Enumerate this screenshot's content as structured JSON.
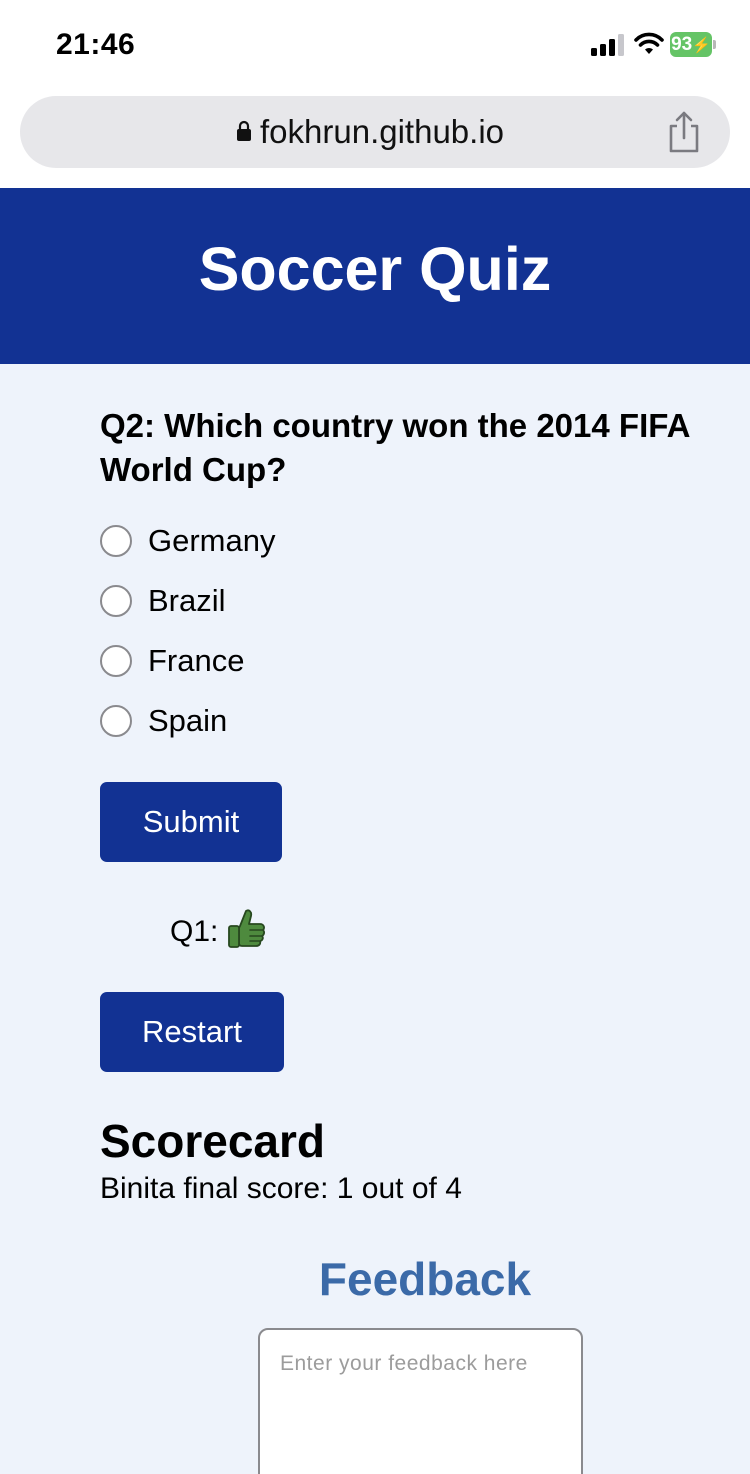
{
  "status_bar": {
    "time": "21:46",
    "battery_level": "93"
  },
  "browser": {
    "url": "fokhrun.github.io",
    "icons": [
      "lock-icon",
      "share-icon",
      "signal-icon",
      "wifi-icon",
      "battery-icon"
    ]
  },
  "header": {
    "title": "Soccer Quiz"
  },
  "quiz": {
    "question": "Q2: Which country won the 2014 FIFA World Cup?",
    "options": [
      {
        "label": "Germany",
        "selected": false
      },
      {
        "label": "Brazil",
        "selected": false
      },
      {
        "label": "France",
        "selected": false
      },
      {
        "label": "Spain",
        "selected": false
      }
    ],
    "submit_label": "Submit",
    "result": {
      "label": "Q1:",
      "icon": "thumbs-up-icon"
    },
    "restart_label": "Restart"
  },
  "scorecard": {
    "heading": "Scorecard",
    "text": "Binita final score: 1 out of 4"
  },
  "feedback": {
    "heading": "Feedback",
    "placeholder": "Enter your feedback here",
    "value": ""
  },
  "colors": {
    "header_bg": "#123293",
    "page_bg": "#eef3fb",
    "button_bg": "#123293",
    "feedback_heading": "#3b6aa8",
    "battery": "#65c466"
  }
}
